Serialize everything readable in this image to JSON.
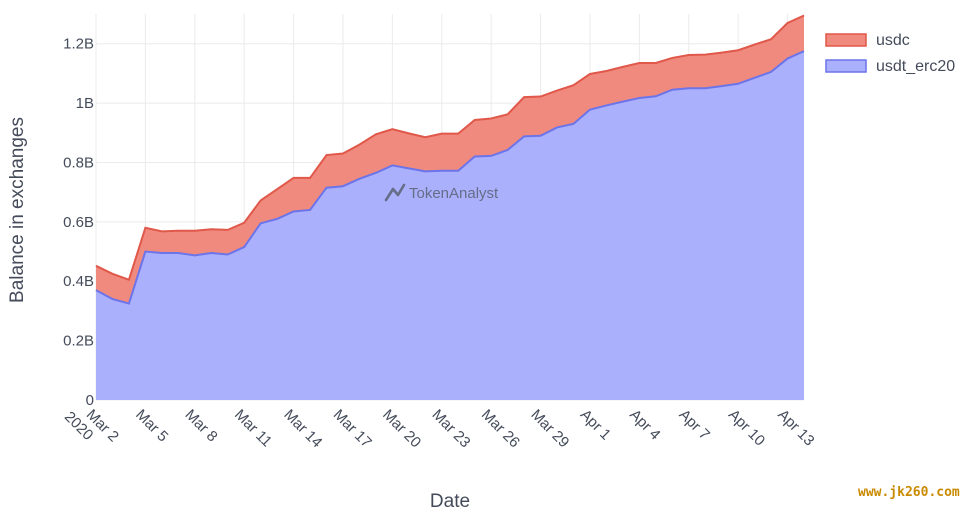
{
  "chart_data": {
    "type": "area",
    "xlabel": "Date",
    "ylabel": "Balance in exchanges",
    "ylim": [
      0,
      1300000000
    ],
    "y_ticks": [
      {
        "value": 0,
        "label": "0"
      },
      {
        "value": 200000000,
        "label": "0.2B"
      },
      {
        "value": 400000000,
        "label": "0.4B"
      },
      {
        "value": 600000000,
        "label": "0.6B"
      },
      {
        "value": 800000000,
        "label": "0.8B"
      },
      {
        "value": 1000000000,
        "label": "1B"
      },
      {
        "value": 1200000000,
        "label": "1.2B"
      }
    ],
    "x": [
      "2020-03-02",
      "2020-03-03",
      "2020-03-04",
      "2020-03-05",
      "2020-03-06",
      "2020-03-07",
      "2020-03-08",
      "2020-03-09",
      "2020-03-10",
      "2020-03-11",
      "2020-03-12",
      "2020-03-13",
      "2020-03-14",
      "2020-03-15",
      "2020-03-16",
      "2020-03-17",
      "2020-03-18",
      "2020-03-19",
      "2020-03-20",
      "2020-03-21",
      "2020-03-22",
      "2020-03-23",
      "2020-03-24",
      "2020-03-25",
      "2020-03-26",
      "2020-03-27",
      "2020-03-28",
      "2020-03-29",
      "2020-03-30",
      "2020-03-31",
      "2020-04-01",
      "2020-04-02",
      "2020-04-03",
      "2020-04-04",
      "2020-04-05",
      "2020-04-06",
      "2020-04-07",
      "2020-04-08",
      "2020-04-09",
      "2020-04-10",
      "2020-04-11",
      "2020-04-12",
      "2020-04-13",
      "2020-04-14"
    ],
    "x_ticks": [
      {
        "date": "2020-03-02",
        "label": "Mar 2",
        "sublabel": "2020"
      },
      {
        "date": "2020-03-05",
        "label": "Mar 5"
      },
      {
        "date": "2020-03-08",
        "label": "Mar 8"
      },
      {
        "date": "2020-03-11",
        "label": "Mar 11"
      },
      {
        "date": "2020-03-14",
        "label": "Mar 14"
      },
      {
        "date": "2020-03-17",
        "label": "Mar 17"
      },
      {
        "date": "2020-03-20",
        "label": "Mar 20"
      },
      {
        "date": "2020-03-23",
        "label": "Mar 23"
      },
      {
        "date": "2020-03-26",
        "label": "Mar 26"
      },
      {
        "date": "2020-03-29",
        "label": "Mar 29"
      },
      {
        "date": "2020-04-01",
        "label": "Apr 1"
      },
      {
        "date": "2020-04-04",
        "label": "Apr 4"
      },
      {
        "date": "2020-04-07",
        "label": "Apr 7"
      },
      {
        "date": "2020-04-10",
        "label": "Apr 10"
      },
      {
        "date": "2020-04-13",
        "label": "Apr 13"
      }
    ],
    "series": [
      {
        "name": "usdt_erc20",
        "fill": "#aab0fb",
        "line": "#6c74ea",
        "values": [
          370000000,
          340000000,
          325000000,
          500000000,
          495000000,
          495000000,
          487000000,
          495000000,
          490000000,
          515000000,
          595000000,
          610000000,
          635000000,
          640000000,
          715000000,
          720000000,
          745000000,
          765000000,
          790000000,
          780000000,
          770000000,
          772000000,
          772000000,
          820000000,
          822000000,
          842000000,
          888000000,
          890000000,
          918000000,
          930000000,
          978000000,
          992000000,
          1005000000,
          1017000000,
          1023000000,
          1045000000,
          1050000000,
          1050000000,
          1057000000,
          1065000000,
          1085000000,
          1105000000,
          1150000000,
          1175000000
        ]
      },
      {
        "name": "usdc",
        "fill": "#f08a7e",
        "line": "#e0584a",
        "stacked_total": [
          452000000,
          425000000,
          405000000,
          580000000,
          568000000,
          570000000,
          570000000,
          575000000,
          573000000,
          597000000,
          672000000,
          710000000,
          748000000,
          748000000,
          825000000,
          830000000,
          860000000,
          895000000,
          912000000,
          898000000,
          885000000,
          897000000,
          897000000,
          943000000,
          948000000,
          962000000,
          1020000000,
          1022000000,
          1042000000,
          1060000000,
          1098000000,
          1108000000,
          1122000000,
          1135000000,
          1135000000,
          1152000000,
          1162000000,
          1163000000,
          1170000000,
          1178000000,
          1197000000,
          1215000000,
          1270000000,
          1295000000
        ]
      }
    ],
    "grid": true,
    "legend_position": "top-right",
    "watermark": "TokenAnalyst"
  },
  "site_mark": "www.jk260.com"
}
